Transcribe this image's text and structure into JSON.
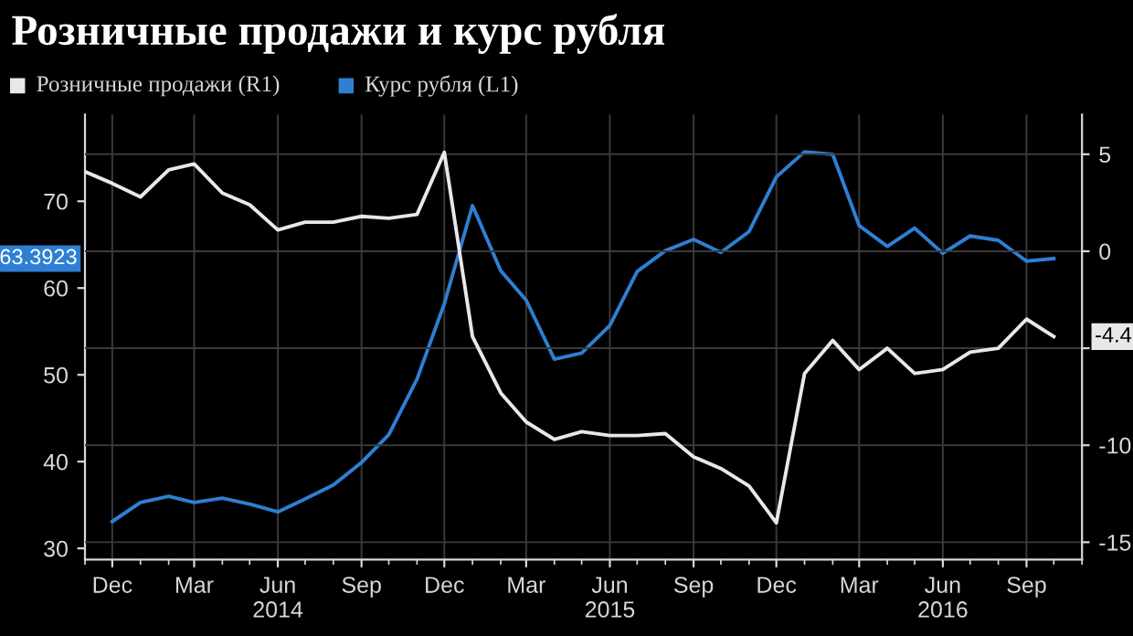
{
  "chart_data": {
    "type": "line",
    "title": "Розничные продажи и курс рубля",
    "series": [
      {
        "name": "Розничные продажи (R1)",
        "axis": "y2",
        "color": "#e8e8e8",
        "x": [
          "2013-11",
          "2013-12",
          "2014-01",
          "2014-02",
          "2014-03",
          "2014-04",
          "2014-05",
          "2014-06",
          "2014-07",
          "2014-08",
          "2014-09",
          "2014-10",
          "2014-11",
          "2014-12",
          "2015-01",
          "2015-02",
          "2015-03",
          "2015-04",
          "2015-05",
          "2015-06",
          "2015-07",
          "2015-08",
          "2015-09",
          "2015-10",
          "2015-11",
          "2015-12",
          "2016-01",
          "2016-02",
          "2016-03",
          "2016-04",
          "2016-05",
          "2016-06",
          "2016-07",
          "2016-08",
          "2016-09",
          "2016-10"
        ],
        "values": [
          4.1,
          3.5,
          2.8,
          4.2,
          4.5,
          3.0,
          2.4,
          1.1,
          1.5,
          1.5,
          1.8,
          1.7,
          1.9,
          5.1,
          -4.4,
          -7.3,
          -8.8,
          -9.7,
          -9.3,
          -9.5,
          -9.5,
          -9.4,
          -10.6,
          -11.2,
          -12.1,
          -14.0,
          -6.3,
          -4.6,
          -6.1,
          -5.0,
          -6.3,
          -6.1,
          -5.2,
          -5.0,
          -3.5,
          -4.4
        ]
      },
      {
        "name": "Курс рубля (L1)",
        "axis": "y",
        "color": "#2f7fd3",
        "x": [
          "2013-12",
          "2014-01",
          "2014-02",
          "2014-03",
          "2014-04",
          "2014-05",
          "2014-06",
          "2014-07",
          "2014-08",
          "2014-09",
          "2014-10",
          "2014-11",
          "2014-12",
          "2015-01",
          "2015-02",
          "2015-03",
          "2015-04",
          "2015-05",
          "2015-06",
          "2015-07",
          "2015-08",
          "2015-09",
          "2015-10",
          "2015-11",
          "2015-12",
          "2016-01",
          "2016-02",
          "2016-03",
          "2016-04",
          "2016-05",
          "2016-06",
          "2016-07",
          "2016-08",
          "2016-09",
          "2016-10"
        ],
        "values": [
          33.1,
          35.3,
          36.0,
          35.3,
          35.8,
          35.1,
          34.2,
          35.7,
          37.3,
          39.9,
          43.1,
          49.5,
          58.2,
          69.5,
          62.0,
          58.6,
          51.8,
          52.5,
          55.7,
          61.9,
          64.3,
          65.6,
          64.1,
          66.5,
          72.8,
          75.7,
          75.4,
          67.2,
          64.8,
          66.9,
          64.0,
          66.0,
          65.5,
          63.1,
          63.4
        ]
      }
    ],
    "annotations": [
      "-4.4",
      "63.3923"
    ],
    "xlim": [
      "2013-11",
      "2016-11"
    ],
    "xticks": [
      {
        "value": "2013-12",
        "label": "Dec"
      },
      {
        "value": "2014-03",
        "label": "Mar"
      },
      {
        "value": "2014-06",
        "label": "Jun\n2014"
      },
      {
        "value": "2014-09",
        "label": "Sep"
      },
      {
        "value": "2014-12",
        "label": "Dec"
      },
      {
        "value": "2015-03",
        "label": "Mar"
      },
      {
        "value": "2015-06",
        "label": "Jun\n2015"
      },
      {
        "value": "2015-09",
        "label": "Sep"
      },
      {
        "value": "2015-12",
        "label": "Dec"
      },
      {
        "value": "2016-03",
        "label": "Mar"
      },
      {
        "value": "2016-06",
        "label": "Jun\n2016"
      },
      {
        "value": "2016-09",
        "label": "Sep"
      }
    ],
    "ylim": [
      28.7,
      80
    ],
    "yticks": [
      30,
      40,
      50,
      60,
      70
    ],
    "y2lim": [
      -15.9,
      7.05
    ],
    "y2ticks": [
      -15,
      -10,
      {
        "value": -5,
        "label": null
      },
      0,
      5
    ],
    "grid": true,
    "legend": "top left",
    "line_style": "solid",
    "marker": "none"
  }
}
